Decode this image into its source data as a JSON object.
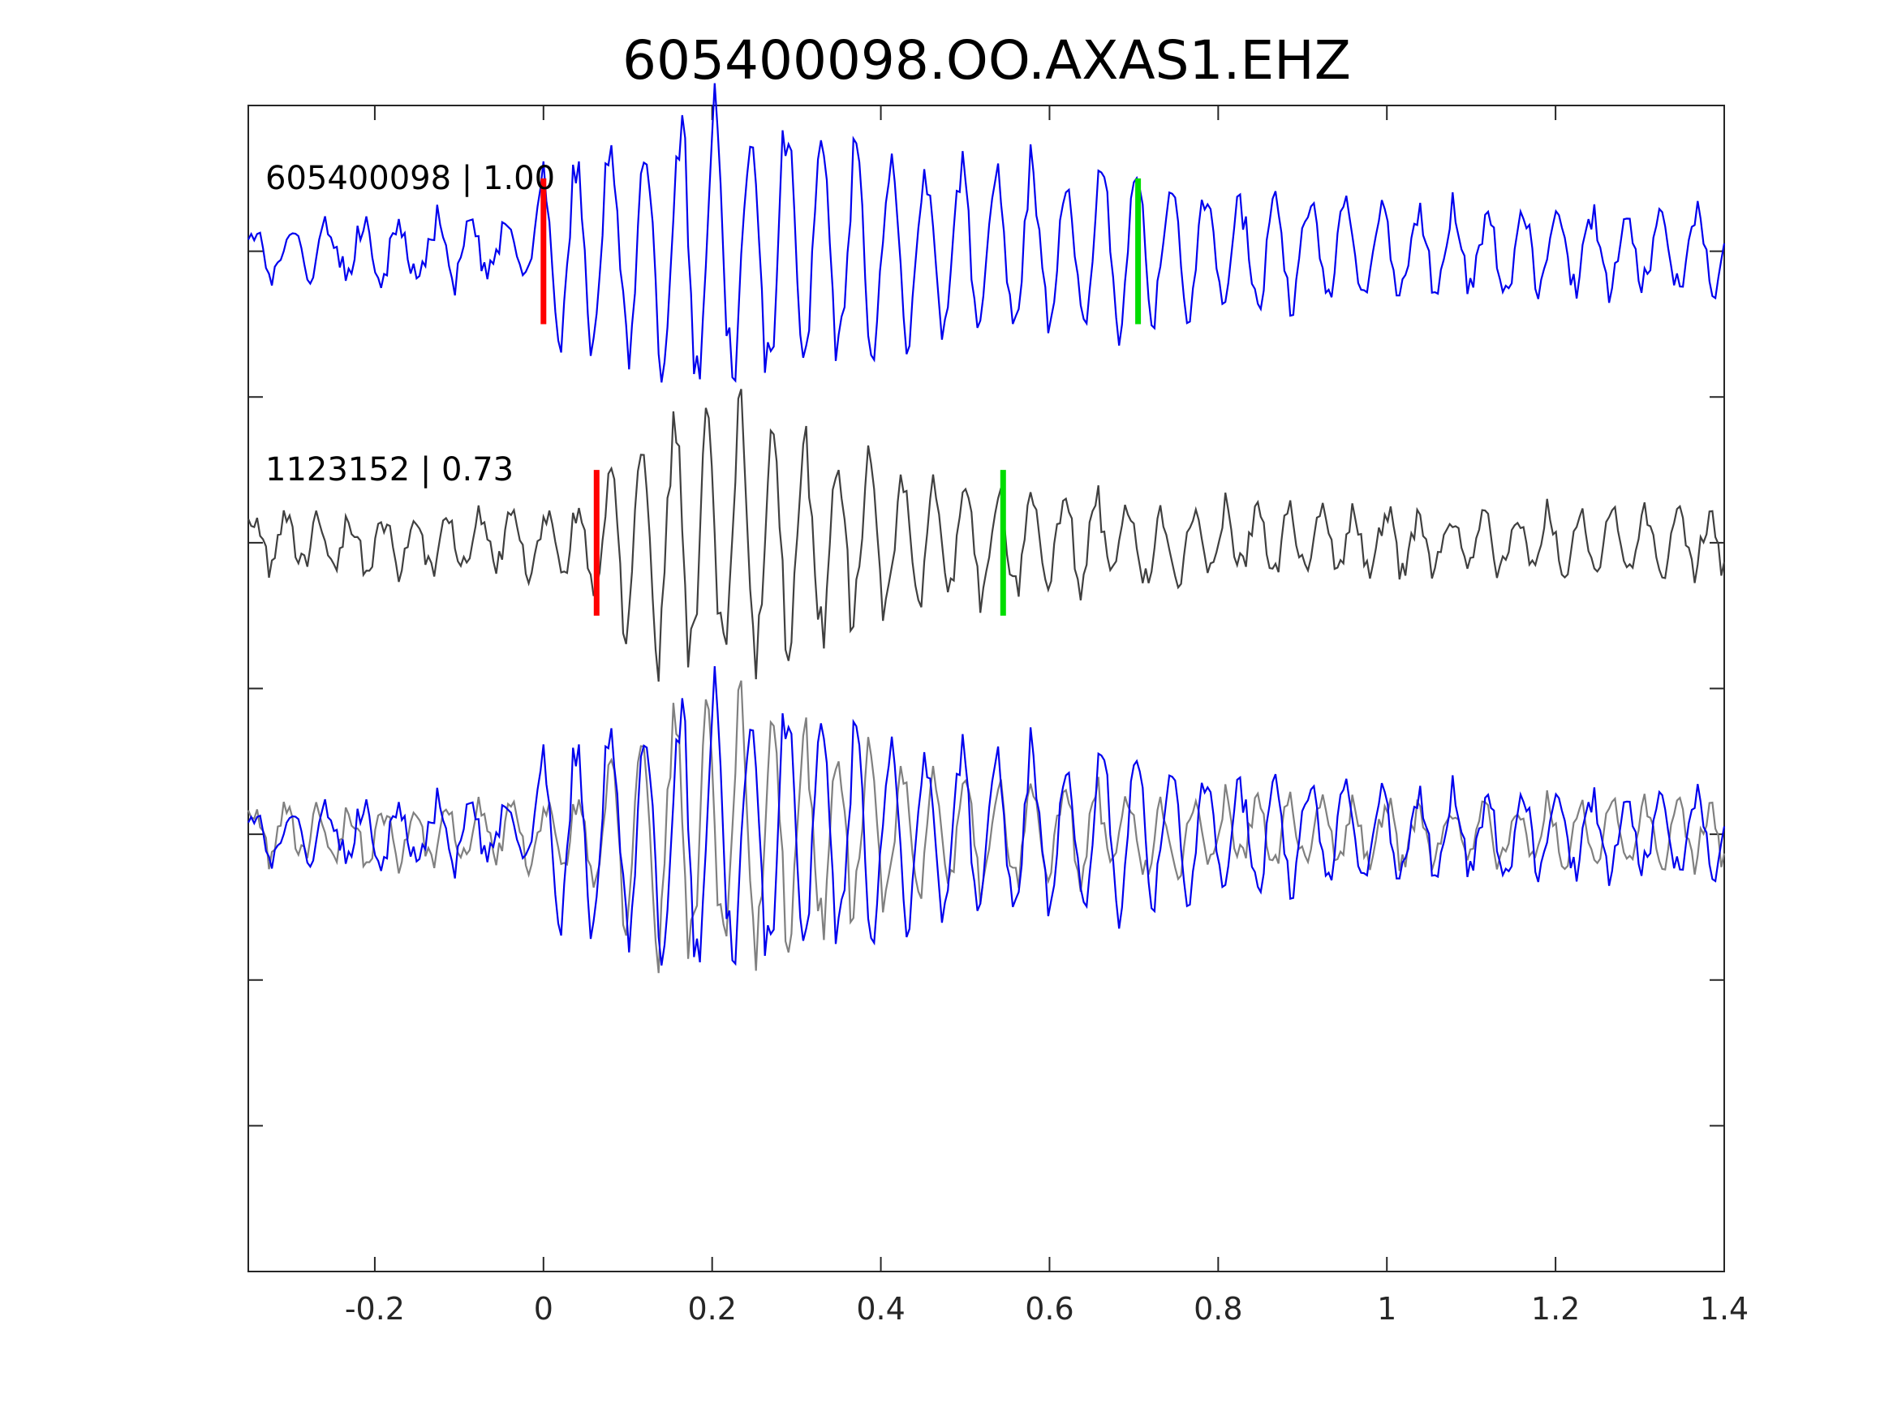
{
  "chart_data": {
    "type": "line",
    "title": "605400098.OO.AXAS1.EHZ",
    "xlabel": "",
    "ylabel": "",
    "xlim": [
      -0.35,
      1.4
    ],
    "ylim": [
      -3.5,
      0.5
    ],
    "x_ticks": [
      -0.2,
      0,
      0.2,
      0.4,
      0.6,
      0.8,
      1,
      1.2,
      1.4
    ],
    "x_tick_labels": [
      "-0.2",
      "0",
      "0.2",
      "0.4",
      "0.6",
      "0.8",
      "1",
      "1.2",
      "1.4"
    ],
    "y_ticks": [
      -3.5,
      -3,
      -2.5,
      -2,
      -1.5,
      -1,
      -0.5,
      0,
      0.5
    ],
    "grid": false,
    "colors": {
      "reference": "#0000ee",
      "template": "#404040",
      "overlay_template": "#808080",
      "p_pick": "#ff0000",
      "s_pick": "#00dd00",
      "axes": "#262626"
    },
    "traces": [
      {
        "label": "605400098 | 1.00",
        "offset": 0,
        "color": "reference",
        "p_pick": 0.0,
        "s_pick": 0.705,
        "envelope": [
          [
            -0.35,
            0.1
          ],
          [
            -0.02,
            0.14
          ],
          [
            0.0,
            0.35
          ],
          [
            0.1,
            0.45
          ],
          [
            0.2,
            0.6
          ],
          [
            0.28,
            0.5
          ],
          [
            0.45,
            0.38
          ],
          [
            0.68,
            0.34
          ],
          [
            0.8,
            0.25
          ],
          [
            1.0,
            0.18
          ],
          [
            1.4,
            0.15
          ]
        ],
        "freq_hz": 24,
        "seed": 17
      },
      {
        "label": "1123152 | 0.73",
        "offset": -1,
        "color": "template",
        "p_pick": 0.063,
        "s_pick": 0.545,
        "envelope": [
          [
            -0.35,
            0.1
          ],
          [
            0.02,
            0.12
          ],
          [
            0.06,
            0.25
          ],
          [
            0.12,
            0.45
          ],
          [
            0.22,
            0.55
          ],
          [
            0.35,
            0.35
          ],
          [
            0.5,
            0.22
          ],
          [
            0.6,
            0.2
          ],
          [
            0.8,
            0.14
          ],
          [
            1.4,
            0.12
          ]
        ],
        "freq_hz": 26,
        "seed": 41
      },
      {
        "label": "",
        "offset": -2,
        "overlay": [
          "template",
          "reference"
        ]
      }
    ]
  }
}
